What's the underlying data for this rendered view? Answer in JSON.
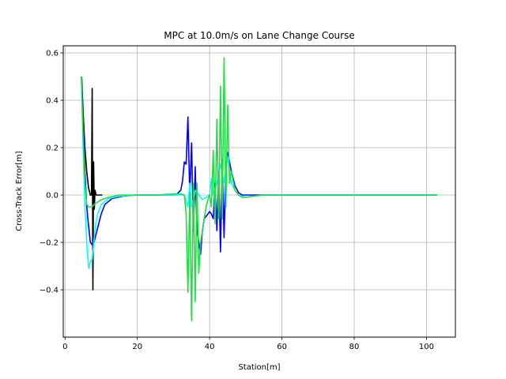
{
  "chart_data": {
    "type": "line",
    "title": "MPC at 10.0m/s on Lane Change Course",
    "xlabel": "Station[m]",
    "ylabel": "Cross-Track Error[m]",
    "xlim": [
      -0.5,
      108
    ],
    "ylim": [
      -0.6,
      0.63
    ],
    "grid": true,
    "x_ticks": [
      0,
      20,
      40,
      60,
      80,
      100
    ],
    "x_tick_labels": [
      "0",
      "20",
      "40",
      "60",
      "80",
      "100"
    ],
    "y_ticks": [
      -0.4,
      -0.2,
      0.0,
      0.2,
      0.4,
      0.6
    ],
    "y_tick_labels": [
      "−0.4",
      "−0.2",
      "0.0",
      "0.2",
      "0.4",
      "0.6"
    ],
    "series": [
      {
        "color": "#000000",
        "points": [
          [
            4.6,
            0.5
          ],
          [
            5.0,
            0.35
          ],
          [
            5.5,
            0.2
          ],
          [
            6.0,
            0.1
          ],
          [
            6.5,
            0.03
          ],
          [
            7.0,
            0.0
          ],
          [
            7.3,
            0.0
          ],
          [
            7.5,
            0.45
          ],
          [
            7.7,
            -0.4
          ],
          [
            7.9,
            0.14
          ],
          [
            8.1,
            -0.06
          ],
          [
            8.3,
            0.02
          ],
          [
            8.6,
            0.0
          ],
          [
            9.5,
            0.0
          ],
          [
            10.3,
            0.0
          ]
        ]
      },
      {
        "color": "#0000ff",
        "points": [
          [
            4.5,
            0.5
          ],
          [
            5.0,
            0.3
          ],
          [
            5.5,
            0.1
          ],
          [
            6.0,
            -0.05
          ],
          [
            6.5,
            -0.13
          ],
          [
            7.0,
            -0.2
          ],
          [
            7.5,
            -0.21
          ],
          [
            8.0,
            -0.2
          ],
          [
            9.0,
            -0.14
          ],
          [
            10.0,
            -0.08
          ],
          [
            11.0,
            -0.04
          ],
          [
            13.0,
            -0.015
          ],
          [
            16.0,
            -0.005
          ],
          [
            20.0,
            0.0
          ],
          [
            25.0,
            0.0
          ],
          [
            30.0,
            0.0
          ],
          [
            31.0,
            0.005
          ],
          [
            32.0,
            0.02
          ],
          [
            32.5,
            0.06
          ],
          [
            33.0,
            0.14
          ],
          [
            33.5,
            0.13
          ],
          [
            34.0,
            0.33
          ],
          [
            34.5,
            0.0
          ],
          [
            35.0,
            0.22
          ],
          [
            35.5,
            -0.15
          ],
          [
            36.0,
            0.12
          ],
          [
            36.5,
            -0.15
          ],
          [
            37.0,
            -0.2
          ],
          [
            37.5,
            -0.25
          ],
          [
            38.0,
            -0.15
          ],
          [
            38.5,
            -0.1
          ],
          [
            39.0,
            -0.09
          ],
          [
            39.5,
            -0.08
          ],
          [
            40.0,
            -0.07
          ],
          [
            40.5,
            -0.08
          ],
          [
            41.0,
            -0.1
          ],
          [
            41.5,
            0.05
          ],
          [
            42.0,
            -0.15
          ],
          [
            42.5,
            0.1
          ],
          [
            43.0,
            -0.24
          ],
          [
            43.5,
            0.15
          ],
          [
            44.0,
            -0.18
          ],
          [
            44.5,
            0.12
          ],
          [
            45.0,
            0.18
          ],
          [
            46.0,
            0.1
          ],
          [
            47.0,
            0.04
          ],
          [
            48.0,
            0.01
          ],
          [
            49.0,
            0.0
          ],
          [
            55.0,
            0.0
          ],
          [
            103.0,
            0.0
          ]
        ]
      },
      {
        "color": "#00ffff",
        "points": [
          [
            4.5,
            0.5
          ],
          [
            5.0,
            0.2
          ],
          [
            5.5,
            -0.05
          ],
          [
            6.0,
            -0.2
          ],
          [
            6.5,
            -0.31
          ],
          [
            7.0,
            -0.28
          ],
          [
            7.5,
            -0.27
          ],
          [
            8.0,
            -0.19
          ],
          [
            8.5,
            -0.12
          ],
          [
            9.0,
            -0.08
          ],
          [
            10.0,
            -0.04
          ],
          [
            12.0,
            -0.015
          ],
          [
            15.0,
            -0.005
          ],
          [
            20.0,
            0.0
          ],
          [
            30.0,
            0.0
          ],
          [
            33.0,
            0.0
          ],
          [
            34.0,
            -0.05
          ],
          [
            34.5,
            0.05
          ],
          [
            35.0,
            -0.05
          ],
          [
            36.0,
            0.02
          ],
          [
            38.0,
            -0.02
          ],
          [
            40.0,
            0.0
          ],
          [
            40.5,
            0.07
          ],
          [
            41.0,
            0.0
          ],
          [
            42.0,
            0.05
          ],
          [
            43.0,
            0.13
          ],
          [
            44.0,
            0.05
          ],
          [
            45.0,
            0.16
          ],
          [
            46.0,
            0.05
          ],
          [
            47.0,
            0.02
          ],
          [
            48.0,
            0.0
          ],
          [
            49.0,
            -0.005
          ],
          [
            50.0,
            -0.01
          ],
          [
            52.0,
            -0.005
          ],
          [
            55.0,
            0.0
          ],
          [
            103.0,
            0.0
          ]
        ]
      },
      {
        "color": "#22dd44",
        "points": [
          [
            4.5,
            0.5
          ],
          [
            5.0,
            0.25
          ],
          [
            5.5,
            0.05
          ],
          [
            6.0,
            -0.04
          ],
          [
            6.5,
            -0.05
          ],
          [
            7.0,
            -0.05
          ],
          [
            7.5,
            -0.05
          ],
          [
            8.0,
            -0.04
          ],
          [
            9.0,
            -0.03
          ],
          [
            10.0,
            -0.02
          ],
          [
            12.0,
            -0.01
          ],
          [
            15.0,
            0.0
          ],
          [
            20.0,
            0.0
          ],
          [
            25.0,
            0.0
          ],
          [
            30.0,
            0.005
          ],
          [
            32.0,
            0.005
          ],
          [
            33.0,
            0.0
          ],
          [
            33.5,
            -0.08
          ],
          [
            34.0,
            -0.41
          ],
          [
            34.5,
            0.0
          ],
          [
            35.0,
            -0.53
          ],
          [
            35.5,
            0.05
          ],
          [
            36.0,
            -0.45
          ],
          [
            36.5,
            0.05
          ],
          [
            37.0,
            -0.33
          ],
          [
            37.5,
            -0.2
          ],
          [
            38.0,
            -0.15
          ],
          [
            38.5,
            -0.1
          ],
          [
            39.0,
            -0.05
          ],
          [
            39.5,
            -0.02
          ],
          [
            40.0,
            0.0
          ],
          [
            40.5,
            -0.05
          ],
          [
            41.0,
            0.19
          ],
          [
            41.5,
            -0.12
          ],
          [
            42.0,
            0.32
          ],
          [
            42.5,
            -0.1
          ],
          [
            43.0,
            0.46
          ],
          [
            43.5,
            -0.1
          ],
          [
            44.0,
            0.58
          ],
          [
            44.5,
            -0.05
          ],
          [
            45.0,
            0.38
          ],
          [
            45.5,
            0.05
          ],
          [
            46.0,
            0.1
          ],
          [
            47.0,
            0.02
          ],
          [
            48.0,
            0.0
          ],
          [
            49.0,
            -0.01
          ],
          [
            50.0,
            -0.01
          ],
          [
            52.0,
            -0.005
          ],
          [
            55.0,
            0.0
          ],
          [
            103.0,
            0.0
          ]
        ]
      }
    ]
  }
}
